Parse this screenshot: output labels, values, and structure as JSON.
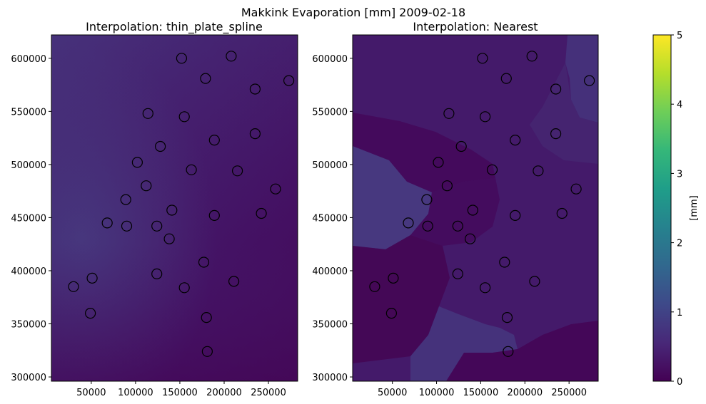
{
  "suptitle": "Makkink Evaporation [mm] 2009-02-18",
  "chart_data": [
    {
      "type": "heatmap",
      "title": "Interpolation: thin_plate_spline",
      "xlim": [
        5000,
        283000
      ],
      "ylim": [
        296000,
        622000
      ],
      "xticks": [
        50000,
        100000,
        150000,
        200000,
        250000
      ],
      "yticks": [
        300000,
        350000,
        400000,
        450000,
        500000,
        550000,
        600000
      ],
      "xtick_labels": [
        "50000",
        "100000",
        "150000",
        "200000",
        "250000"
      ],
      "ytick_labels": [
        "300000",
        "350000",
        "400000",
        "450000",
        "500000",
        "550000",
        "600000"
      ],
      "field_description": "smooth field, higher values (~0.5-0.6 mm) toward west and north, lower (~0.1-0.2 mm) in south-east",
      "colors": {
        "high_west": "#452e78",
        "mid": "#431c6b",
        "low_south": "#430a5a"
      }
    },
    {
      "type": "heatmap",
      "title": "Interpolation: Nearest",
      "xlim": [
        5000,
        283000
      ],
      "ylim": [
        296000,
        622000
      ],
      "xticks": [
        50000,
        100000,
        150000,
        200000,
        250000
      ],
      "yticks": [
        300000,
        350000,
        400000,
        450000,
        500000,
        550000,
        600000
      ],
      "xtick_labels": [
        "50000",
        "100000",
        "150000",
        "200000",
        "250000"
      ],
      "ytick_labels": [
        "300000",
        "350000",
        "400000",
        "450000",
        "500000",
        "550000",
        "600000"
      ],
      "field_description": "piecewise-constant Voronoi regions around stations, values ~0.1-0.6 mm",
      "colors": {
        "base": "#441a6a",
        "dark": "#44085b",
        "light": "#45327b",
        "lighter": "#463a80"
      }
    }
  ],
  "stations": [
    {
      "x": 152000,
      "y": 600000
    },
    {
      "x": 208000,
      "y": 602000
    },
    {
      "x": 179000,
      "y": 581000
    },
    {
      "x": 273000,
      "y": 579000
    },
    {
      "x": 235000,
      "y": 571000
    },
    {
      "x": 114000,
      "y": 548000
    },
    {
      "x": 155000,
      "y": 545000
    },
    {
      "x": 235000,
      "y": 529000
    },
    {
      "x": 189000,
      "y": 523000
    },
    {
      "x": 128000,
      "y": 517000
    },
    {
      "x": 102000,
      "y": 502000
    },
    {
      "x": 163000,
      "y": 495000
    },
    {
      "x": 215000,
      "y": 494000
    },
    {
      "x": 258000,
      "y": 477000
    },
    {
      "x": 112000,
      "y": 480000
    },
    {
      "x": 89000,
      "y": 467000
    },
    {
      "x": 141000,
      "y": 457000
    },
    {
      "x": 242000,
      "y": 454000
    },
    {
      "x": 189000,
      "y": 452000
    },
    {
      "x": 68000,
      "y": 445000
    },
    {
      "x": 90000,
      "y": 442000
    },
    {
      "x": 124000,
      "y": 442000
    },
    {
      "x": 138000,
      "y": 430000
    },
    {
      "x": 177000,
      "y": 408000
    },
    {
      "x": 124000,
      "y": 397000
    },
    {
      "x": 51000,
      "y": 393000
    },
    {
      "x": 211000,
      "y": 390000
    },
    {
      "x": 30000,
      "y": 385000
    },
    {
      "x": 155000,
      "y": 384000
    },
    {
      "x": 49000,
      "y": 360000
    },
    {
      "x": 180000,
      "y": 356000
    },
    {
      "x": 181000,
      "y": 324000
    }
  ],
  "colorbar": {
    "label": "[mm]",
    "min": 0,
    "max": 5,
    "tick_labels": [
      "0",
      "1",
      "2",
      "3",
      "4",
      "5"
    ],
    "colormap": "viridis",
    "stops": [
      "#440154",
      "#482878",
      "#3e4989",
      "#31688e",
      "#26828e",
      "#1f9e89",
      "#35b779",
      "#6ece58",
      "#b5de2b",
      "#fde725"
    ]
  }
}
